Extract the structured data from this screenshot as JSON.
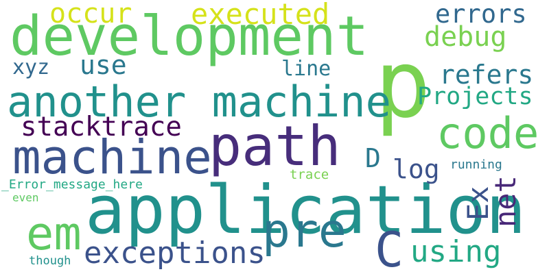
{
  "words": {
    "development": {
      "text": "development",
      "color": "#5ec962"
    },
    "application": {
      "text": "application",
      "color": "#21918c"
    },
    "p": {
      "text": "p",
      "color": "#7ad151"
    },
    "path": {
      "text": "path",
      "color": "#472d7b"
    },
    "machine": {
      "text": "machine",
      "color": "#3b528b"
    },
    "another_machine": {
      "text": "another machine",
      "color": "#21918c"
    },
    "code": {
      "text": "code",
      "color": "#5ec962"
    },
    "em": {
      "text": "em",
      "color": "#5ec962"
    },
    "pre": {
      "text": "pre",
      "color": "#2a788e"
    },
    "c": {
      "text": "C",
      "color": "#3b528b"
    },
    "exceptions": {
      "text": "exceptions",
      "color": "#3b528b"
    },
    "stacktrace": {
      "text": "stacktrace",
      "color": "#440154"
    },
    "executed": {
      "text": "executed",
      "color": "#d5e21a"
    },
    "occur": {
      "text": "occur",
      "color": "#d5e21a"
    },
    "errors": {
      "text": "errors",
      "color": "#31688e"
    },
    "debug": {
      "text": "debug",
      "color": "#7ad151"
    },
    "refers": {
      "text": "refers",
      "color": "#2a788e"
    },
    "projects": {
      "text": "Projects",
      "color": "#22a884"
    },
    "xyz": {
      "text": "xyz",
      "color": "#31688e"
    },
    "use": {
      "text": "use",
      "color": "#2a788e"
    },
    "line": {
      "text": "line",
      "color": "#2a788e"
    },
    "d": {
      "text": "D",
      "color": "#2a788e"
    },
    "log": {
      "text": "log",
      "color": "#3b528b"
    },
    "ex": {
      "text": "Ex",
      "color": "#3b528b"
    },
    "net": {
      "text": "net",
      "color": "#482878"
    },
    "using": {
      "text": "using",
      "color": "#22a884"
    },
    "running": {
      "text": "running",
      "color": "#2a788e"
    },
    "trace": {
      "text": "trace",
      "color": "#7ad151"
    },
    "error_message": {
      "text": "_Error_message_here",
      "color": "#22a884"
    },
    "even": {
      "text": "even",
      "color": "#5ec962"
    },
    "though": {
      "text": "though",
      "color": "#21918c"
    }
  }
}
